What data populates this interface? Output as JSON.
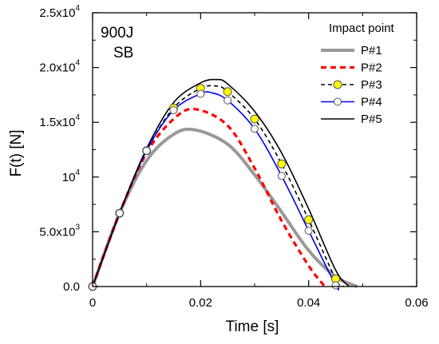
{
  "chart_data": {
    "type": "line",
    "xlabel": "Time [s]",
    "ylabel": "F(t)  [N]",
    "xlim": [
      0,
      0.06
    ],
    "ylim": [
      0,
      25000
    ],
    "x_ticks": [
      {
        "value": 0,
        "label": "0"
      },
      {
        "value": 0.02,
        "label": "0.02"
      },
      {
        "value": 0.04,
        "label": "0.04"
      },
      {
        "value": 0.06,
        "label": "0.06"
      }
    ],
    "y_ticks": [
      {
        "value": 0,
        "label": "0.0",
        "sup": ""
      },
      {
        "value": 5000,
        "label": "5.0x10",
        "sup": "3"
      },
      {
        "value": 10000,
        "label": "10",
        "sup": "4"
      },
      {
        "value": 15000,
        "label": "1.5x10",
        "sup": "4"
      },
      {
        "value": 20000,
        "label": "2.0x10",
        "sup": "4"
      },
      {
        "value": 25000,
        "label": "2.5x10",
        "sup": "4"
      }
    ],
    "annotations": [
      "900J",
      "SB"
    ],
    "legend": {
      "title": "Impact point",
      "position": "top-right"
    },
    "grid": false,
    "series": [
      {
        "name": "P#1",
        "color": "#999999",
        "style": "thick-solid",
        "marker": "none",
        "x": [
          0,
          0.005,
          0.01,
          0.015,
          0.019,
          0.025,
          0.03,
          0.035,
          0.04,
          0.045,
          0.049
        ],
        "y": [
          0,
          6700,
          11500,
          13900,
          14300,
          13000,
          10200,
          6800,
          3300,
          900,
          0
        ]
      },
      {
        "name": "P#2",
        "color": "#ff0000",
        "style": "dotted",
        "marker": "none",
        "x": [
          0,
          0.005,
          0.01,
          0.015,
          0.019,
          0.025,
          0.03,
          0.035,
          0.04,
          0.043
        ],
        "y": [
          0,
          6700,
          12200,
          15300,
          16200,
          14700,
          10800,
          6000,
          1900,
          0
        ]
      },
      {
        "name": "P#3",
        "color": "#000000",
        "style": "dashed",
        "marker": "yellow-circle",
        "x": [
          0,
          0.005,
          0.01,
          0.015,
          0.02,
          0.023,
          0.025,
          0.03,
          0.035,
          0.04,
          0.045,
          0.0465
        ],
        "y": [
          0,
          6700,
          12400,
          16300,
          18100,
          18300,
          17800,
          15300,
          11200,
          6100,
          700,
          0
        ],
        "marker_x": [
          0,
          0.005,
          0.01,
          0.015,
          0.02,
          0.025,
          0.03,
          0.035,
          0.04,
          0.045
        ],
        "marker_y": [
          0,
          6700,
          12400,
          16300,
          18100,
          17800,
          15300,
          11200,
          6100,
          700
        ]
      },
      {
        "name": "P#4",
        "color": "#0000ee",
        "style": "solid",
        "marker": "white-circle",
        "x": [
          0,
          0.005,
          0.01,
          0.015,
          0.02,
          0.022,
          0.025,
          0.03,
          0.035,
          0.04,
          0.045,
          0.0455
        ],
        "y": [
          0,
          6700,
          12400,
          16100,
          17600,
          17700,
          17000,
          14400,
          10100,
          5100,
          100,
          0
        ],
        "marker_x": [
          0,
          0.005,
          0.01,
          0.015,
          0.02,
          0.025,
          0.03,
          0.035,
          0.04,
          0.045
        ],
        "marker_y": [
          0,
          6700,
          12400,
          16100,
          17600,
          17000,
          14400,
          10100,
          5100,
          100
        ]
      },
      {
        "name": "P#5",
        "color": "#000000",
        "style": "solid",
        "marker": "none",
        "x": [
          0,
          0.005,
          0.01,
          0.015,
          0.02,
          0.023,
          0.025,
          0.03,
          0.035,
          0.04,
          0.045,
          0.0475
        ],
        "y": [
          0,
          6700,
          12600,
          16800,
          18600,
          18900,
          18500,
          16000,
          12200,
          7100,
          1500,
          0
        ]
      }
    ]
  }
}
